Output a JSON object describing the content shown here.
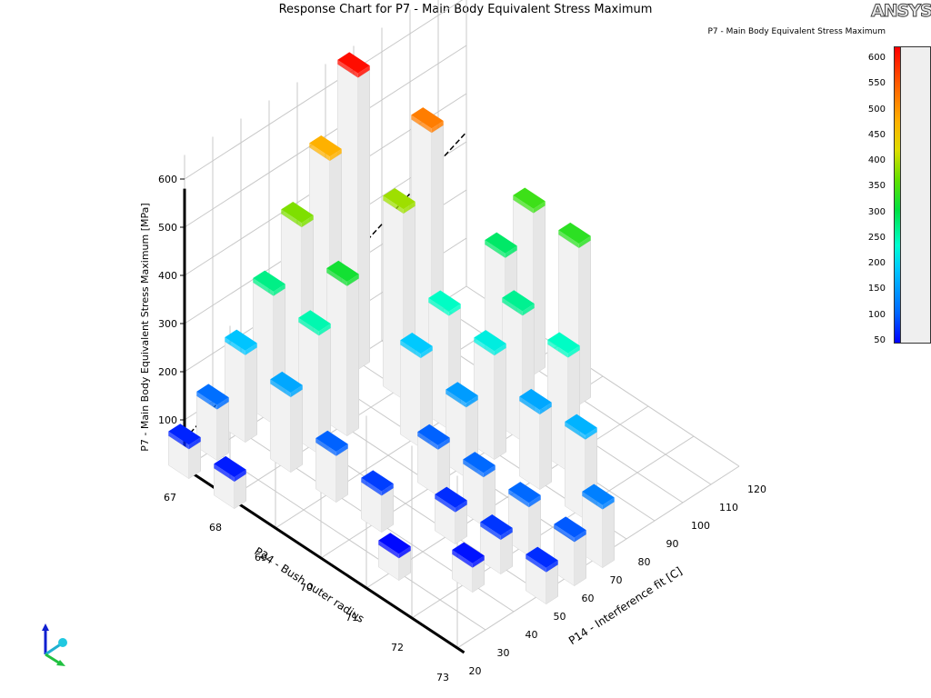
{
  "window": {
    "title": "Response Chart for P7 - Main Body Equivalent Stress Maximum",
    "logo": "ANSYS"
  },
  "legend": {
    "title": "P7 - Main Body Equivalent Stress Maximum",
    "ticks": [
      "600",
      "550",
      "500",
      "450",
      "400",
      "350",
      "300",
      "250",
      "200",
      "150",
      "100",
      "50"
    ],
    "min": 50,
    "max": 625
  },
  "chart_data": {
    "type": "bar3d",
    "title": "Response Chart for P7 - Main Body Equivalent Stress Maximum",
    "zlabel": "P7 - Main Body Equivalent Stress Maximum  [MPa]",
    "ylabel": "P24 - Bush outer radius",
    "xlabel": "P14 - Interference fit  [C]",
    "zticks": [
      "100",
      "200",
      "300",
      "400",
      "500",
      "600"
    ],
    "yticks": [
      "67",
      "68",
      "69",
      "70",
      "71",
      "72",
      "73"
    ],
    "xticks": [
      "20",
      "30",
      "40",
      "50",
      "60",
      "70",
      "80",
      "90",
      "100",
      "110",
      "120"
    ],
    "zlim": [
      0,
      650
    ],
    "color_min": 50,
    "color_max": 625,
    "bars": [
      {
        "radius": 67,
        "fit": 20,
        "value": 70
      },
      {
        "radius": 67,
        "fit": 30,
        "value": 115
      },
      {
        "radius": 67,
        "fit": 40,
        "value": 190
      },
      {
        "radius": 67,
        "fit": 50,
        "value": 275
      },
      {
        "radius": 67,
        "fit": 60,
        "value": 380
      },
      {
        "radius": 67,
        "fit": 70,
        "value": 480
      },
      {
        "radius": 67,
        "fit": 80,
        "value": 615
      },
      {
        "radius": 68,
        "fit": 20,
        "value": 65
      },
      {
        "radius": 68,
        "fit": 40,
        "value": 165
      },
      {
        "radius": 68,
        "fit": 50,
        "value": 255
      },
      {
        "radius": 68,
        "fit": 60,
        "value": 320
      },
      {
        "radius": 68,
        "fit": 80,
        "value": 395
      },
      {
        "radius": 68,
        "fit": 90,
        "value": 525
      },
      {
        "radius": 69,
        "fit": 40,
        "value": 105
      },
      {
        "radius": 69,
        "fit": 70,
        "value": 195
      },
      {
        "radius": 69,
        "fit": 80,
        "value": 245
      },
      {
        "radius": 69,
        "fit": 100,
        "value": 290
      },
      {
        "radius": 69,
        "fit": 110,
        "value": 345
      },
      {
        "radius": 70,
        "fit": 40,
        "value": 85
      },
      {
        "radius": 70,
        "fit": 60,
        "value": 105
      },
      {
        "radius": 70,
        "fit": 70,
        "value": 155
      },
      {
        "radius": 70,
        "fit": 80,
        "value": 225
      },
      {
        "radius": 70,
        "fit": 90,
        "value": 270
      },
      {
        "radius": 70,
        "fit": 110,
        "value": 335
      },
      {
        "radius": 71,
        "fit": 30,
        "value": 55
      },
      {
        "radius": 71,
        "fit": 50,
        "value": 75
      },
      {
        "radius": 71,
        "fit": 60,
        "value": 110
      },
      {
        "radius": 71,
        "fit": 80,
        "value": 165
      },
      {
        "radius": 71,
        "fit": 90,
        "value": 245
      },
      {
        "radius": 72,
        "fit": 40,
        "value": 60
      },
      {
        "radius": 72,
        "fit": 50,
        "value": 80
      },
      {
        "radius": 72,
        "fit": 60,
        "value": 110
      },
      {
        "radius": 72,
        "fit": 80,
        "value": 175
      },
      {
        "radius": 73,
        "fit": 50,
        "value": 75
      },
      {
        "radius": 73,
        "fit": 60,
        "value": 100
      },
      {
        "radius": 73,
        "fit": 70,
        "value": 130
      }
    ]
  }
}
